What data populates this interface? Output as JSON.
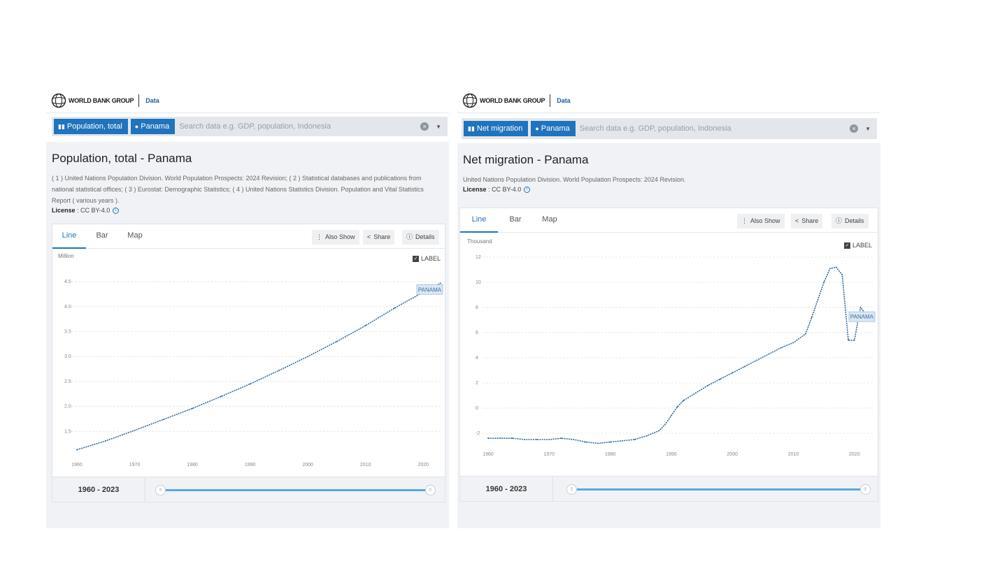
{
  "panels": [
    {
      "brand": {
        "name": "WORLD BANK GROUP",
        "section": "Data"
      },
      "search": {
        "indicator_chip": "Population, total",
        "country_chip": "Panama",
        "placeholder": "Search data e.g. GDP, population, Indonesia"
      },
      "title": "Population, total - Panama",
      "source": "( 1 ) United Nations Population Division. World Population Prospects: 2024 Revision; ( 2 ) Statistical databases and publications from national statistical offices; ( 3 ) Eurostat: Demographic Statistics; ( 4 ) United Nations Statistics Division. Population and Vital Statistics Report ( various years ).",
      "license_label": "License",
      "license_value": " : CC BY-4.0",
      "tabs": [
        "Line",
        "Bar",
        "Map"
      ],
      "tools": {
        "also_show": "Also Show",
        "share": "Share",
        "details": "Details"
      },
      "label_toggle": "LABEL",
      "range": "1960 - 2023"
    },
    {
      "brand": {
        "name": "WORLD BANK GROUP",
        "section": "Data"
      },
      "search": {
        "indicator_chip": "Net migration",
        "country_chip": "Panama",
        "placeholder": "Search data e.g. GDP, population, Indonesia"
      },
      "title": "Net migration - Panama",
      "source": "United Nations Population Division. World Population Prospects: 2024 Revision.",
      "license_label": "License",
      "license_value": " : CC BY-4.0",
      "tabs": [
        "Line",
        "Bar",
        "Map"
      ],
      "tools": {
        "also_show": "Also Show",
        "share": "Share",
        "details": "Details"
      },
      "label_toggle": "LABEL",
      "range": "1960 - 2023"
    }
  ],
  "colors": {
    "accent": "#1f74bd",
    "line": "#2f6b9a",
    "slider": "#5aa8dc"
  },
  "chart_data": [
    {
      "type": "line",
      "ylabel": "Million",
      "x": [
        1960,
        1965,
        1970,
        1975,
        1980,
        1985,
        1990,
        1995,
        2000,
        2005,
        2010,
        2015,
        2020,
        2023
      ],
      "series": [
        {
          "name": "PANAMA",
          "values": [
            1.13,
            1.31,
            1.52,
            1.74,
            1.96,
            2.2,
            2.45,
            2.72,
            3.0,
            3.3,
            3.62,
            3.97,
            4.29,
            4.47
          ]
        }
      ],
      "ylim": [
        1.0,
        4.6
      ],
      "yticks": [
        "1.5",
        "2.0",
        "2.5",
        "3.0",
        "3.5",
        "4.0",
        "4.5"
      ],
      "ytick_values": [
        1.5,
        2.0,
        2.5,
        3.0,
        3.5,
        4.0,
        4.5
      ],
      "xticks": [
        "1960",
        "1970",
        "1980",
        "1990",
        "2000",
        "2010",
        "2020"
      ],
      "xtick_values": [
        1960,
        1970,
        1980,
        1990,
        2000,
        2010,
        2020
      ],
      "xlim": [
        1960,
        2023
      ],
      "grid": true
    },
    {
      "type": "line",
      "ylabel": "Thousand",
      "x": [
        1960,
        1962,
        1964,
        1966,
        1968,
        1970,
        1972,
        1974,
        1976,
        1978,
        1980,
        1982,
        1984,
        1986,
        1988,
        1989,
        1990,
        1991,
        1992,
        1994,
        1996,
        1998,
        2000,
        2002,
        2004,
        2006,
        2008,
        2010,
        2012,
        2013,
        2014,
        2015,
        2016,
        2017,
        2018,
        2019,
        2020,
        2021,
        2022,
        2023
      ],
      "series": [
        {
          "name": "PANAMA",
          "values": [
            -2.4,
            -2.4,
            -2.4,
            -2.5,
            -2.5,
            -2.5,
            -2.4,
            -2.5,
            -2.7,
            -2.8,
            -2.7,
            -2.6,
            -2.5,
            -2.2,
            -1.8,
            -1.3,
            -0.6,
            0.1,
            0.6,
            1.2,
            1.8,
            2.3,
            2.8,
            3.3,
            3.8,
            4.3,
            4.8,
            5.2,
            5.9,
            7.2,
            8.6,
            10.0,
            11.1,
            11.2,
            10.6,
            5.4,
            5.4,
            8.0,
            7.4,
            7.1
          ]
        }
      ],
      "ylim": [
        -3,
        12
      ],
      "yticks": [
        "-2",
        "0",
        "2",
        "4",
        "6",
        "8",
        "10",
        "12"
      ],
      "ytick_values": [
        -2,
        0,
        2,
        4,
        6,
        8,
        10,
        12
      ],
      "xticks": [
        "1960",
        "1970",
        "1980",
        "1990",
        "2000",
        "2010",
        "2020"
      ],
      "xtick_values": [
        1960,
        1970,
        1980,
        1990,
        2000,
        2010,
        2020
      ],
      "xlim": [
        1960,
        2023
      ],
      "grid": true
    }
  ]
}
